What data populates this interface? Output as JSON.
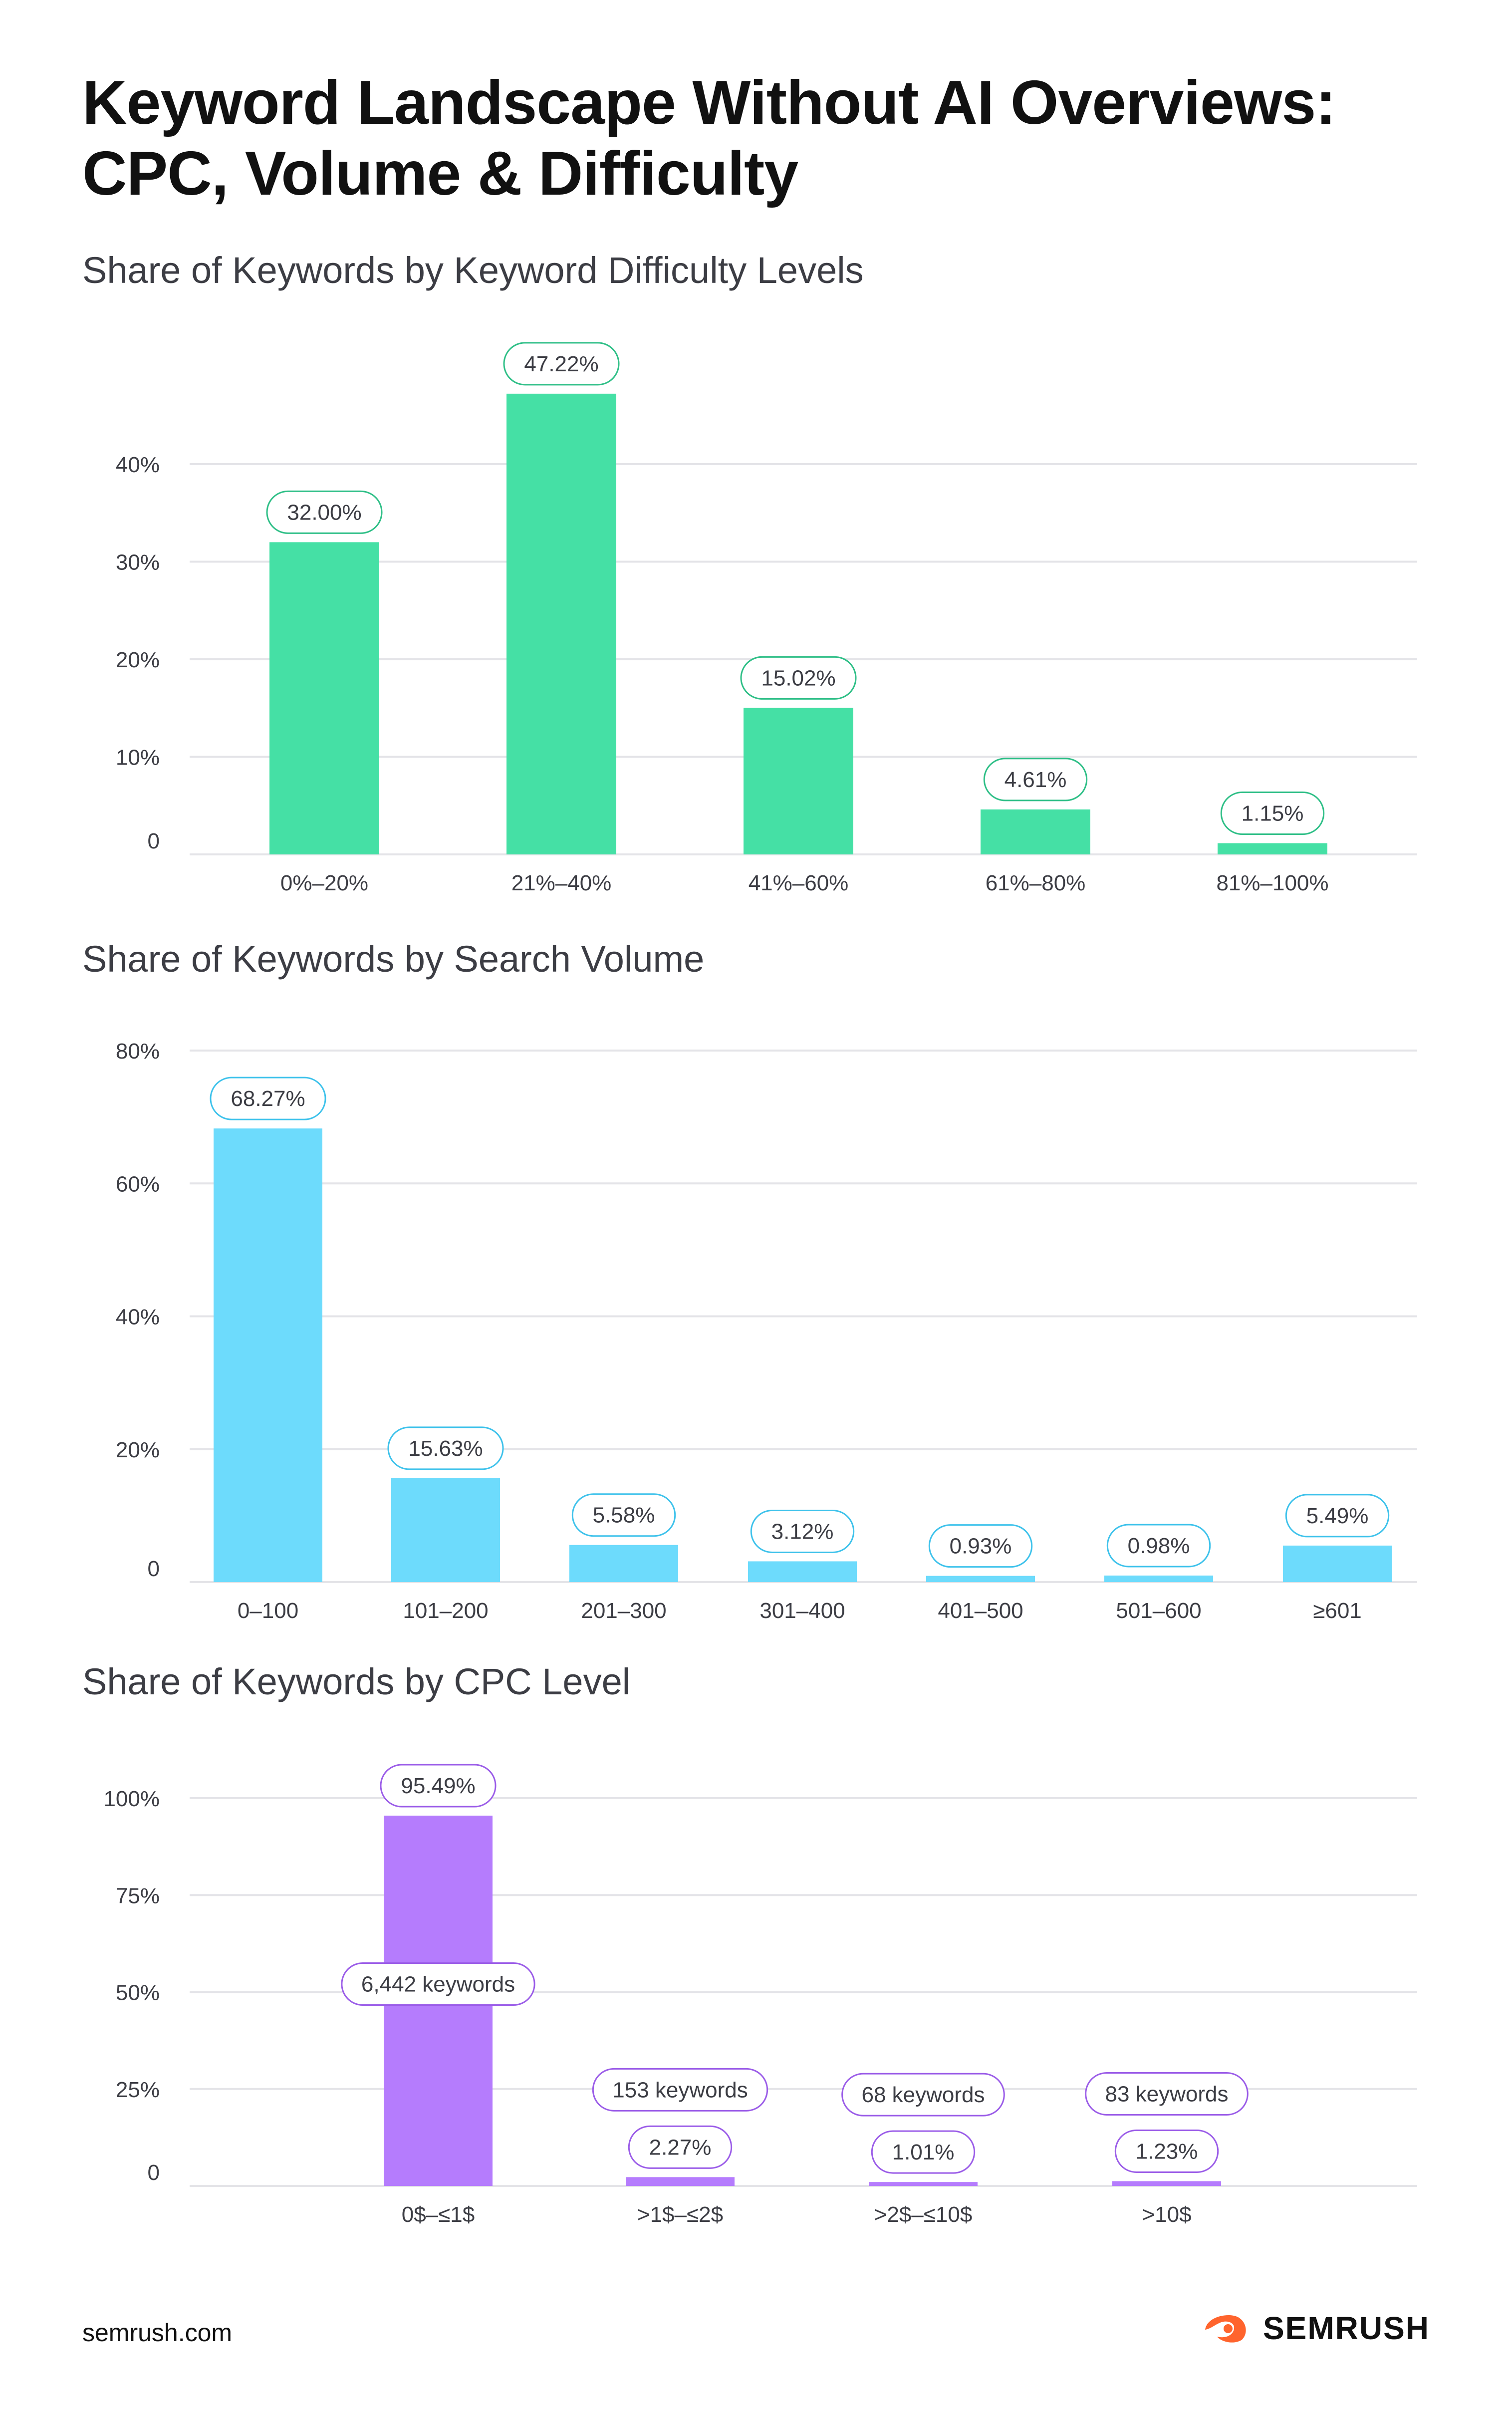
{
  "title_lines": [
    "Keyword Landscape Without AI Overviews:",
    "CPC, Volume & Difficulty"
  ],
  "footer": {
    "url": "semrush.com",
    "brand": "SEMRUSH"
  },
  "colors": {
    "green": "#45e0a5",
    "green_dark": "#2fbf87",
    "blue": "#6ddbfc",
    "blue_dark": "#3ec2eb",
    "purple": "#b57cfd",
    "purple_dark": "#9b5de8",
    "grid": "#e4e4e8",
    "axis_text": "#3c3d44",
    "brand_orange": "#ff642d"
  },
  "chart_data": [
    {
      "type": "bar",
      "title": "Share of Keywords by Keyword Difficulty Levels",
      "categories": [
        "0%–20%",
        "21%–40%",
        "41%–60%",
        "61%–80%",
        "81%–100%"
      ],
      "values": [
        32.0,
        47.22,
        15.02,
        4.61,
        1.15
      ],
      "value_labels": [
        "32.00%",
        "47.22%",
        "15.02%",
        "4.61%",
        "1.15%"
      ],
      "yticks": [
        0,
        10,
        20,
        30,
        40
      ],
      "ytick_labels": [
        "0",
        "10%",
        "20%",
        "30%",
        "40%"
      ],
      "ylim": [
        0,
        40
      ],
      "xlabel": "",
      "ylabel": "",
      "grid": true
    },
    {
      "type": "bar",
      "title": "Share of Keywords by Search Volume",
      "categories": [
        "0–100",
        "101–200",
        "201–300",
        "301–400",
        "401–500",
        "501–600",
        "≥601"
      ],
      "values": [
        68.27,
        15.63,
        5.58,
        3.12,
        0.93,
        0.98,
        5.49
      ],
      "value_labels": [
        "68.27%",
        "15.63%",
        "5.58%",
        "3.12%",
        "0.93%",
        "0.98%",
        "5.49%"
      ],
      "yticks": [
        0,
        20,
        40,
        60,
        80
      ],
      "ytick_labels": [
        "0",
        "20%",
        "40%",
        "60%",
        "80%"
      ],
      "ylim": [
        0,
        80
      ],
      "xlabel": "",
      "ylabel": "",
      "grid": true
    },
    {
      "type": "bar",
      "title": "Share of Keywords by CPC Level",
      "categories": [
        "0$–≤1$",
        ">1$–≤2$",
        ">2$–≤10$",
        ">10$"
      ],
      "values": [
        95.49,
        2.27,
        1.01,
        1.23
      ],
      "value_labels": [
        "95.49%",
        "2.27%",
        "1.01%",
        "1.23%"
      ],
      "keyword_counts": [
        "6,442 keywords",
        "153 keywords",
        "68 keywords",
        "83 keywords"
      ],
      "yticks": [
        0,
        25,
        50,
        75,
        100
      ],
      "ytick_labels": [
        "0",
        "25%",
        "50%",
        "75%",
        "100%"
      ],
      "ylim": [
        0,
        100
      ],
      "xlabel": "",
      "ylabel": "",
      "grid": true
    }
  ]
}
